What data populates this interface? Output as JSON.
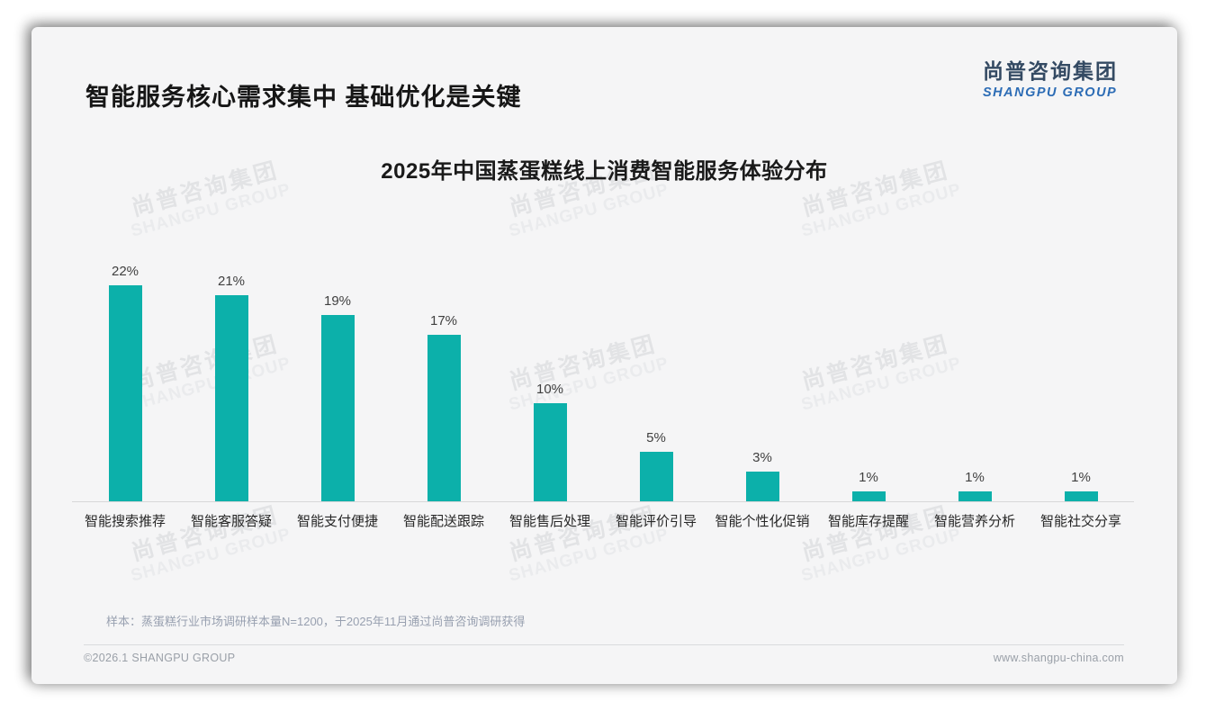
{
  "page": {
    "title": "智能服务核心需求集中 基础优化是关键",
    "logo": {
      "cn": "尚普咨询集团",
      "en": "SHANGPU GROUP"
    },
    "watermark": {
      "cn": "尚普咨询集团",
      "en": "SHANGPU GROUP"
    },
    "note": "样本：蒸蛋糕行业市场调研样本量N=1200，于2025年11月通过尚普咨询调研获得",
    "footer": {
      "copyright": "©2026.1 SHANGPU GROUP",
      "website": "www.shangpu-china.com"
    }
  },
  "chart_data": {
    "type": "bar",
    "title": "2025年中国蒸蛋糕线上消费智能服务体验分布",
    "categories": [
      "智能搜索推荐",
      "智能客服答疑",
      "智能支付便捷",
      "智能配送跟踪",
      "智能售后处理",
      "智能评价引导",
      "智能个性化促销",
      "智能库存提醒",
      "智能营养分析",
      "智能社交分享"
    ],
    "values": [
      22,
      21,
      19,
      17,
      10,
      5,
      3,
      1,
      1,
      1
    ],
    "labels": [
      "22%",
      "21%",
      "19%",
      "17%",
      "10%",
      "5%",
      "3%",
      "1%",
      "1%",
      "1%"
    ],
    "unit": "%",
    "ylim": [
      0,
      24
    ],
    "grid": false,
    "legend": false,
    "bar_color": "#0cb0aa",
    "value_label_color": "#3f3f3f",
    "xlabel": "",
    "ylabel": ""
  }
}
